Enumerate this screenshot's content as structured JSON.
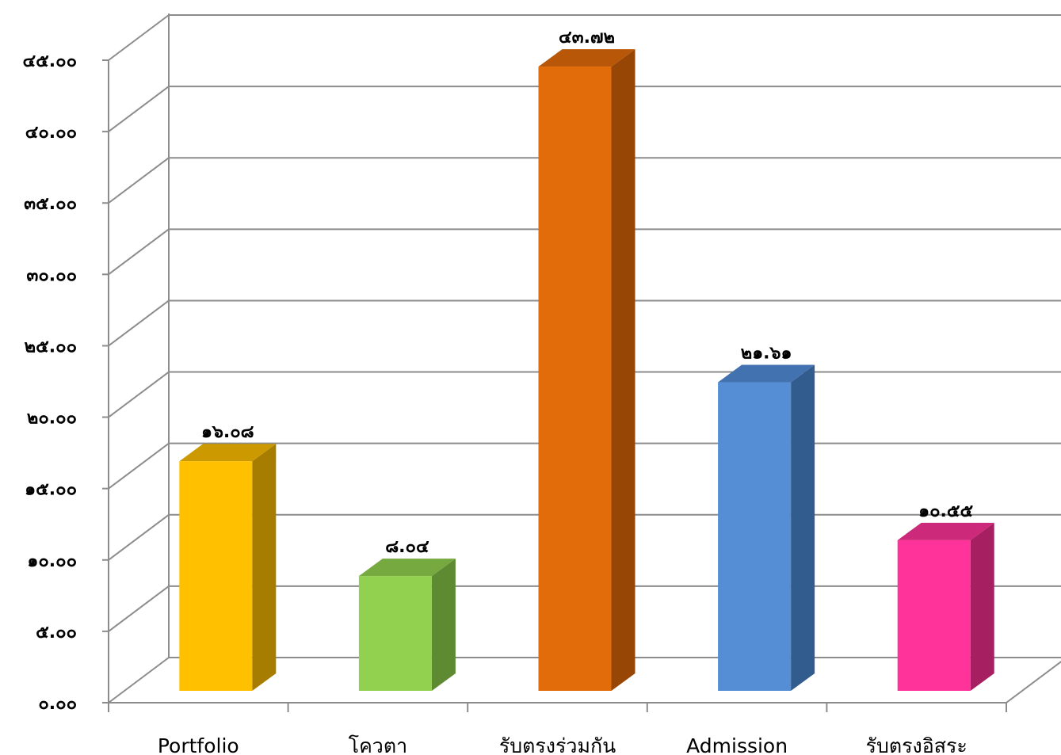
{
  "chart_data": {
    "type": "bar",
    "categories": [
      "Portfolio",
      "โควตา",
      "รับตรงร่วมกัน",
      "Admission",
      "รับตรงอิสระ"
    ],
    "values": [
      16.08,
      8.04,
      43.72,
      21.61,
      10.55
    ],
    "value_labels": [
      "๑๖.๐๘",
      "๘.๐๔",
      "๔๓.๗๒",
      "๒๑.๖๑",
      "๑๐.๕๕"
    ],
    "ylim": [
      0,
      45
    ],
    "y_ticks": [
      0,
      5,
      10,
      15,
      20,
      25,
      30,
      35,
      40,
      45
    ],
    "y_tick_labels": [
      "๐.๐๐",
      "๕.๐๐",
      "๑๐.๐๐",
      "๑๕.๐๐",
      "๒๐.๐๐",
      "๒๕.๐๐",
      "๓๐.๐๐",
      "๓๕.๐๐",
      "๔๐.๐๐",
      "๔๕.๐๐"
    ],
    "grid": true,
    "three_d": true,
    "colors": [
      {
        "front": "#FFC000",
        "side": "#A67D00",
        "top": "#CC9A00"
      },
      {
        "front": "#92D050",
        "side": "#5E8A32",
        "top": "#76A93F"
      },
      {
        "front": "#E36C0A",
        "side": "#984605",
        "top": "#B85707"
      },
      {
        "front": "#558ED5",
        "side": "#335C8E",
        "top": "#4272B0"
      },
      {
        "front": "#FF3399",
        "side": "#A61F61",
        "top": "#CC297A"
      }
    ]
  }
}
